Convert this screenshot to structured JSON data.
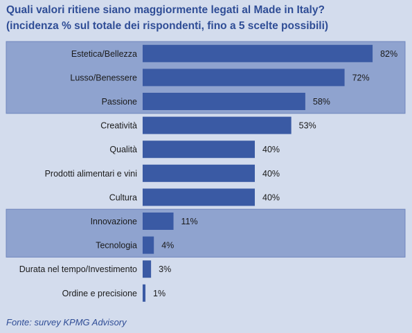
{
  "title_line1": "Quali valori ritiene siano maggiormente legati al Made in Italy?",
  "title_line2": "(incidenza % sul totale dei rispondenti, fino a 5 scelte possibili)",
  "source": "Fonte: survey KPMG Advisory",
  "colors": {
    "background": "#d3dced",
    "highlight_band": "#8fa3cf",
    "bar": "#3a5aa4",
    "title": "#2f4d96",
    "text": "#1a1a1a"
  },
  "chart_data": {
    "type": "bar",
    "orientation": "horizontal",
    "categories": [
      "Estetica/Bellezza",
      "Lusso/Benessere",
      "Passione",
      "Creatività",
      "Qualità",
      "Prodotti alimentari e vini",
      "Cultura",
      "Innovazione",
      "Tecnologia",
      "Durata nel tempo/Investimento",
      "Ordine e precisione"
    ],
    "values": [
      82,
      72,
      58,
      53,
      40,
      40,
      40,
      11,
      4,
      3,
      1
    ],
    "value_labels": [
      "82%",
      "72%",
      "58%",
      "53%",
      "40%",
      "40%",
      "40%",
      "11%",
      "4%",
      "3%",
      "1%"
    ],
    "unit": "%",
    "highlighted_groups": [
      [
        0,
        2
      ],
      [
        7,
        8
      ]
    ],
    "grid": false,
    "legend": "none"
  }
}
